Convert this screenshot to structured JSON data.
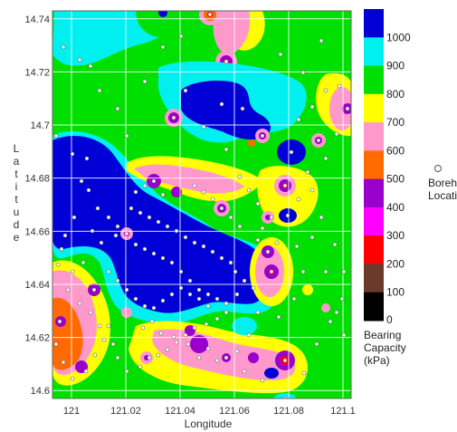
{
  "map": {
    "xlabel": "Longitude",
    "ylabel_letters": [
      "L",
      "a",
      "t",
      "i",
      "t",
      "u",
      "d",
      "e"
    ],
    "x_ticks": [
      "121",
      "121.02",
      "121.04",
      "121.06",
      "121.08",
      "121.1"
    ],
    "y_ticks": [
      "14.74",
      "14.72",
      "14.7",
      "14.68",
      "14.66",
      "14.64",
      "14.62",
      "14.6"
    ],
    "x_range": [
      120.993,
      121.103
    ],
    "y_range": [
      14.597,
      14.743
    ]
  },
  "legend": {
    "levels": [
      {
        "label": "1000",
        "color": "#0000d6"
      },
      {
        "label": "900",
        "color": "#00f0f0"
      },
      {
        "label": "800",
        "color": "#00e000"
      },
      {
        "label": "700",
        "color": "#ffff00"
      },
      {
        "label": "600",
        "color": "#ff99cc"
      },
      {
        "label": "500",
        "color": "#ff6a00"
      },
      {
        "label": "400",
        "color": "#9900cc"
      },
      {
        "label": "300",
        "color": "#ff00ff"
      },
      {
        "label": "200",
        "color": "#ff0000"
      },
      {
        "label": "100",
        "color": "#6b3a2a"
      },
      {
        "label": "0",
        "color": "#000000"
      }
    ],
    "unit_lines": [
      "Bearing",
      "Capacity",
      "(kPa)"
    ],
    "borehole_lines": [
      "Borehole",
      "Location"
    ]
  }
}
